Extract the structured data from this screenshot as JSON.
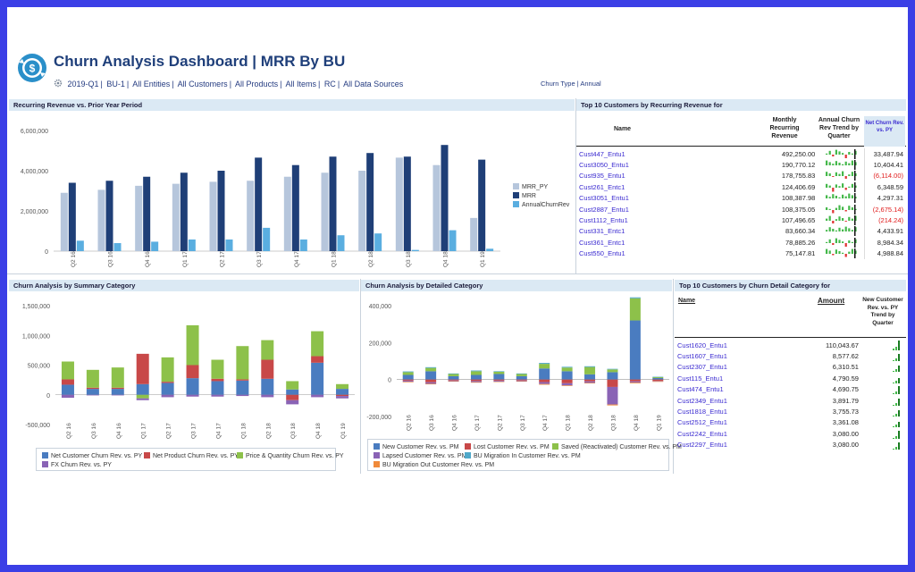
{
  "header": {
    "title": "Churn Analysis Dashboard | MRR By BU",
    "filters": [
      "2019-Q1",
      "BU-1",
      "All Entities",
      "All Customers",
      "All Products",
      "All Items",
      "RC",
      "All Data Sources"
    ],
    "churn_type_label": "Churn Type",
    "churn_type_value": "Annual"
  },
  "panels": {
    "recurring": "Recurring Revenue vs. Prior Year Period",
    "top10_recurring": "Top 10 Customers by Recurring Revenue for",
    "summary": "Churn Analysis by Summary Category",
    "detailed": "Churn Analysis by Detailed Category",
    "top10_churn": "Top 10 Customers by Churn Detail Category for"
  },
  "colors": {
    "mrr_py": "#b6c6dc",
    "mrr": "#1f3f77",
    "annual_churn": "#5aaee0",
    "net_customer": "#4a7cc0",
    "net_product": "#c84848",
    "price_qty": "#8dc14a",
    "fx": "#8a63b5",
    "new_customer": "#4a7cc0",
    "lost_customer": "#c84848",
    "saved": "#8dc14a",
    "lapsed": "#8a63b5",
    "bu_in": "#4fa8c9",
    "bu_out": "#f08a3a",
    "neg_text": "#e01a1a"
  },
  "table_recurring": {
    "col_name": "Name",
    "col_mrr": "Monthly Recurring Revenue",
    "col_trend": "Annual Churn Rev Trend by Quarter",
    "col_net": "Net Churn Rev. vs. PY",
    "rows": [
      {
        "name": "Cust447_Entu1",
        "mrr": "492,250.00",
        "net": "33,487.94",
        "neg": false
      },
      {
        "name": "Cust3050_Entu1",
        "mrr": "190,770.12",
        "net": "10,404.41",
        "neg": false
      },
      {
        "name": "Cust935_Entu1",
        "mrr": "178,755.83",
        "net": "(6,114.00)",
        "neg": true
      },
      {
        "name": "Cust261_Entc1",
        "mrr": "124,406.69",
        "net": "6,348.59",
        "neg": false
      },
      {
        "name": "Cust3051_Entu1",
        "mrr": "108,387.98",
        "net": "4,297.31",
        "neg": false
      },
      {
        "name": "Cust2887_Entu1",
        "mrr": "108,375.05",
        "net": "(2,675.14)",
        "neg": true
      },
      {
        "name": "Cust1112_Entu1",
        "mrr": "107,496.65",
        "net": "(214.24)",
        "neg": true
      },
      {
        "name": "Cust331_Entc1",
        "mrr": "83,660.34",
        "net": "4,433.91",
        "neg": false
      },
      {
        "name": "Cust361_Entc1",
        "mrr": "78,885.26",
        "net": "8,984.34",
        "neg": false
      },
      {
        "name": "Cust550_Entu1",
        "mrr": "75,147.81",
        "net": "4,988.84",
        "neg": false
      }
    ]
  },
  "table_churn": {
    "col_name": "Name",
    "col_amount": "Amount",
    "col_trend": "New Customer Rev. vs. PY Trend by Quarter",
    "rows": [
      {
        "name": "Cust1620_Entu1",
        "amount": "110,043.67"
      },
      {
        "name": "Cust1607_Entu1",
        "amount": "8,577.62"
      },
      {
        "name": "Cust2307_Entu1",
        "amount": "6,310.51"
      },
      {
        "name": "Cust115_Entu1",
        "amount": "4,790.59"
      },
      {
        "name": "Cust474_Entu1",
        "amount": "4,690.75"
      },
      {
        "name": "Cust2349_Entu1",
        "amount": "3,891.79"
      },
      {
        "name": "Cust1818_Entu1",
        "amount": "3,755.73"
      },
      {
        "name": "Cust2512_Entu1",
        "amount": "3,361.08"
      },
      {
        "name": "Cust2242_Entu1",
        "amount": "3,080.00"
      },
      {
        "name": "Cust2297_Entu1",
        "amount": "3,080.00"
      }
    ]
  },
  "chart_data": [
    {
      "type": "bar",
      "categories": [
        "Q2 16",
        "Q3 16",
        "Q4 16",
        "Q1 17",
        "Q2 17",
        "Q3 17",
        "Q4 17",
        "Q1 18",
        "Q2 18",
        "Q3 18",
        "Q4 18",
        "Q1 19"
      ],
      "series": [
        {
          "name": "MRR_PY",
          "values": [
            2900000,
            3050000,
            3250000,
            3350000,
            3450000,
            3500000,
            3700000,
            3900000,
            4000000,
            4650000,
            4280000,
            1650000
          ]
        },
        {
          "name": "MRR",
          "values": [
            3400000,
            3500000,
            3700000,
            3900000,
            4000000,
            4650000,
            4280000,
            4700000,
            4880000,
            4700000,
            5280000,
            4550000
          ]
        },
        {
          "name": "AnnualChurnRev",
          "values": [
            520000,
            400000,
            470000,
            580000,
            580000,
            1160000,
            580000,
            790000,
            880000,
            60000,
            1040000,
            120000
          ]
        }
      ],
      "ylim": [
        0,
        6000000
      ],
      "yticks": [
        "0",
        "2,000,000",
        "4,000,000",
        "6,000,000"
      ],
      "legend": "right"
    },
    {
      "type": "bar",
      "stacked": true,
      "categories": [
        "Q2 16",
        "Q3 16",
        "Q4 16",
        "Q1 17",
        "Q2 17",
        "Q3 17",
        "Q4 17",
        "Q1 18",
        "Q2 18",
        "Q3 18",
        "Q4 18",
        "Q1 19"
      ],
      "series": [
        {
          "name": "Net Customer Churn Rev. vs. PY",
          "values": [
            170000,
            100000,
            100000,
            180000,
            200000,
            280000,
            230000,
            240000,
            270000,
            90000,
            540000,
            100000
          ]
        },
        {
          "name": "Net Product Churn Rev. vs. PY",
          "values": [
            90000,
            20000,
            20000,
            510000,
            20000,
            220000,
            40000,
            20000,
            320000,
            -90000,
            110000,
            -20000
          ]
        },
        {
          "name": "Price & Quantity Churn Rev. vs. PY",
          "values": [
            300000,
            300000,
            340000,
            -60000,
            410000,
            670000,
            320000,
            560000,
            330000,
            140000,
            420000,
            80000
          ]
        },
        {
          "name": "FX Churn Rev. vs. PY",
          "values": [
            -50000,
            -10000,
            -10000,
            -30000,
            -40000,
            -30000,
            -30000,
            -20000,
            -40000,
            -70000,
            -40000,
            -40000
          ]
        }
      ],
      "ylim": [
        -500000,
        1500000
      ],
      "yticks": [
        "-500,000",
        "0",
        "500,000",
        "1,000,000",
        "1,500,000"
      ],
      "legend": "bottom"
    },
    {
      "type": "bar",
      "stacked": true,
      "categories": [
        "Q2 16",
        "Q3 16",
        "Q4 16",
        "Q1 17",
        "Q2 17",
        "Q3 17",
        "Q4 17",
        "Q1 18",
        "Q2 18",
        "Q3 18",
        "Q4 18",
        "Q1 19"
      ],
      "series": [
        {
          "name": "New Customer Rev. vs. PM",
          "values": [
            25000,
            45000,
            18000,
            25000,
            30000,
            18000,
            60000,
            45000,
            28000,
            40000,
            320000,
            8000
          ]
        },
        {
          "name": "Lost Customer Rev. vs. PM",
          "values": [
            -6000,
            -15000,
            -5000,
            -8000,
            -6000,
            -5000,
            -14000,
            -20000,
            -10000,
            -40000,
            -10000,
            -8000
          ]
        },
        {
          "name": "Saved (Reactivated) Customer Rev. vs. PM",
          "values": [
            15000,
            18000,
            12000,
            20000,
            12000,
            12000,
            25000,
            20000,
            40000,
            15000,
            120000,
            5000
          ]
        },
        {
          "name": "Lapsed Customer Rev. vs. PM",
          "values": [
            -6000,
            -8000,
            -4000,
            -6000,
            -5000,
            -4000,
            -10000,
            -12000,
            -8000,
            -95000,
            -6000,
            -2000
          ]
        },
        {
          "name": "BU Migration In Customer Rev. vs. PM",
          "values": [
            4000,
            4000,
            3000,
            4000,
            3000,
            3000,
            5000,
            4000,
            4000,
            3000,
            5000,
            2000
          ]
        },
        {
          "name": "BU Migration Out Customer Rev. vs. PM",
          "values": [
            -3000,
            -3000,
            -2000,
            -3000,
            -2000,
            -2000,
            -4000,
            -3000,
            -3000,
            -5000,
            -4000,
            -2000
          ]
        }
      ],
      "ylim": [
        -200000,
        400000
      ],
      "yticks": [
        "-200,000",
        "0",
        "200,000",
        "400,000"
      ],
      "legend": "bottom"
    }
  ]
}
